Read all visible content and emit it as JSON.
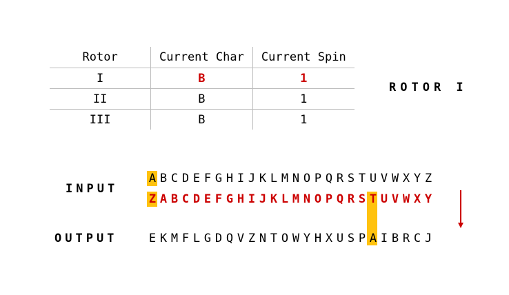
{
  "table": {
    "headers": [
      "Rotor",
      "Current Char",
      "Current Spin"
    ],
    "rows": [
      {
        "rotor": "I",
        "char": "B",
        "spin": "1",
        "highlight": true
      },
      {
        "rotor": "II",
        "char": "B",
        "spin": "1",
        "highlight": false
      },
      {
        "rotor": "III",
        "char": "B",
        "spin": "1",
        "highlight": false
      }
    ]
  },
  "rotor_title": "ROTOR I",
  "labels": {
    "input": "INPUT",
    "output": "OUTPUT"
  },
  "strips": {
    "input": [
      "A",
      "B",
      "C",
      "D",
      "E",
      "F",
      "G",
      "H",
      "I",
      "J",
      "K",
      "L",
      "M",
      "N",
      "O",
      "P",
      "Q",
      "R",
      "S",
      "T",
      "U",
      "V",
      "W",
      "X",
      "Y",
      "Z"
    ],
    "rotor": [
      "Z",
      "A",
      "B",
      "C",
      "D",
      "E",
      "F",
      "G",
      "H",
      "I",
      "J",
      "K",
      "L",
      "M",
      "N",
      "O",
      "P",
      "Q",
      "R",
      "S",
      "T",
      "U",
      "V",
      "W",
      "X",
      "Y"
    ],
    "output": [
      "E",
      "K",
      "M",
      "F",
      "L",
      "G",
      "D",
      "Q",
      "V",
      "Z",
      "N",
      "T",
      "O",
      "W",
      "Y",
      "H",
      "X",
      "U",
      "S",
      "P",
      "A",
      "I",
      "B",
      "R",
      "C",
      "J"
    ]
  },
  "colors": {
    "highlight": "#ffc20e",
    "accent": "#cc0000"
  }
}
